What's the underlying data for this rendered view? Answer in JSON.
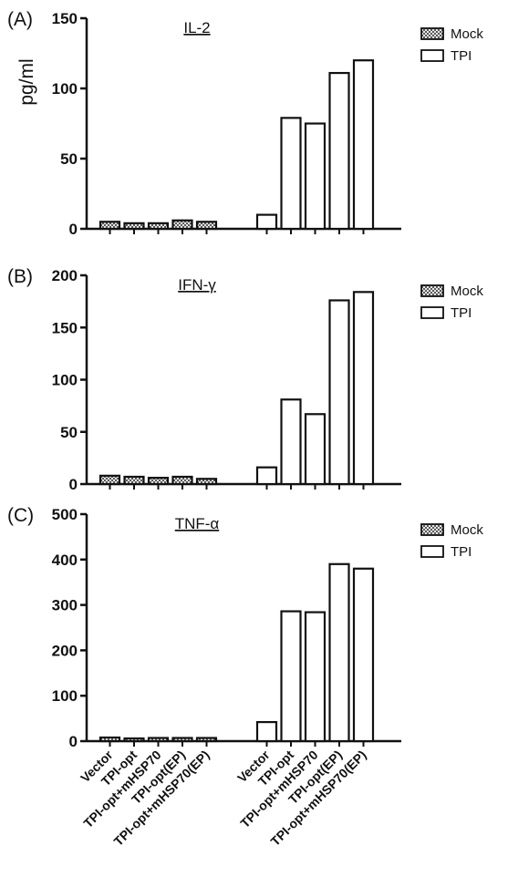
{
  "colors": {
    "axis": "#111111",
    "mock_fill": "#9a9a9a",
    "tpi_fill": "#ffffff",
    "bar_stroke": "#111111"
  },
  "legend": {
    "mock": "Mock",
    "tpi": "TPI",
    "mock_pattern": "checkered",
    "tpi_pattern": "open"
  },
  "x_categories": [
    "Vector",
    "TPI-opt",
    "TPI-opt+mHSP70",
    "TPI-opt(EP)",
    "TPI-opt+mHSP70(EP)",
    "Vector",
    "TPI-opt",
    "TPI-opt+mHSP70",
    "TPI-opt(EP)",
    "TPI-opt+mHSP70(EP)"
  ],
  "chart_data": [
    {
      "type": "bar",
      "panel": "(A)",
      "title": "IL-2",
      "ylabel": "pg/ml",
      "xlabel": "",
      "ylim": [
        0,
        150
      ],
      "yticks": [
        0,
        50,
        100,
        150
      ],
      "grid": false,
      "legend_position": "top-right",
      "categories": [
        "Vector",
        "TPI-opt",
        "TPI-opt+mHSP70",
        "TPI-opt(EP)",
        "TPI-opt+mHSP70(EP)"
      ],
      "series": [
        {
          "name": "Mock",
          "values": [
            5,
            4,
            4,
            6,
            5
          ]
        },
        {
          "name": "TPI",
          "values": [
            10,
            79,
            75,
            111,
            120
          ]
        }
      ]
    },
    {
      "type": "bar",
      "panel": "(B)",
      "title": "IFN-γ",
      "ylabel": "",
      "xlabel": "",
      "ylim": [
        0,
        200
      ],
      "yticks": [
        0,
        50,
        100,
        150,
        200
      ],
      "grid": false,
      "legend_position": "top-right",
      "categories": [
        "Vector",
        "TPI-opt",
        "TPI-opt+mHSP70",
        "TPI-opt(EP)",
        "TPI-opt+mHSP70(EP)"
      ],
      "series": [
        {
          "name": "Mock",
          "values": [
            8,
            7,
            6,
            7,
            5
          ]
        },
        {
          "name": "TPI",
          "values": [
            16,
            81,
            67,
            176,
            184
          ]
        }
      ]
    },
    {
      "type": "bar",
      "panel": "(C)",
      "title": "TNF-α",
      "ylabel": "",
      "xlabel": "",
      "ylim": [
        0,
        500
      ],
      "yticks": [
        0,
        100,
        200,
        300,
        400,
        500
      ],
      "grid": false,
      "legend_position": "top-right",
      "categories": [
        "Vector",
        "TPI-opt",
        "TPI-opt+mHSP70",
        "TPI-opt(EP)",
        "TPI-opt+mHSP70(EP)"
      ],
      "series": [
        {
          "name": "Mock",
          "values": [
            8,
            6,
            7,
            7,
            7
          ]
        },
        {
          "name": "TPI",
          "values": [
            42,
            286,
            284,
            390,
            380
          ]
        }
      ]
    }
  ]
}
